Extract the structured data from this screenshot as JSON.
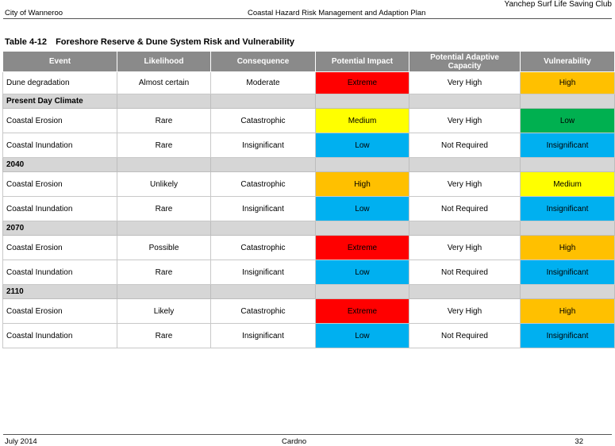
{
  "header": {
    "left": "City of Wanneroo",
    "center": "Coastal Hazard Risk Management and Adaption Plan",
    "right": "Yanchep Surf Life Saving Club"
  },
  "caption": {
    "number": "Table 4-12",
    "title": "Foreshore Reserve & Dune System Risk and Vulnerability"
  },
  "columns": [
    "Event",
    "Likelihood",
    "Consequence",
    "Potential Impact",
    "Potential Adaptive Capacity",
    "Vulnerability"
  ],
  "colors": {
    "Extreme": "#ff0000",
    "High": "#ffc000",
    "Medium": "#ffff00",
    "Low_impact": "#00b0f0",
    "Low_vulnerability": "#00b050",
    "Insignificant": "#00b0f0"
  },
  "rows": [
    {
      "type": "row",
      "event": "Dune degradation",
      "likelihood": "Almost certain",
      "consequence": "Moderate",
      "impact": "Extreme",
      "capacity": "Very High",
      "vulnerability": "High"
    },
    {
      "type": "section",
      "label": "Present Day Climate"
    },
    {
      "type": "row",
      "event": "Coastal Erosion",
      "likelihood": "Rare",
      "consequence": "Catastrophic",
      "impact": "Medium",
      "capacity": "Very High",
      "vulnerability": "Low"
    },
    {
      "type": "row",
      "event": "Coastal Inundation",
      "likelihood": "Rare",
      "consequence": "Insignificant",
      "impact": "Low",
      "capacity": "Not Required",
      "vulnerability": "Insignificant"
    },
    {
      "type": "section",
      "label": "2040"
    },
    {
      "type": "row",
      "event": "Coastal Erosion",
      "likelihood": "Unlikely",
      "consequence": "Catastrophic",
      "impact": "High",
      "capacity": "Very  High",
      "vulnerability": "Medium"
    },
    {
      "type": "row",
      "event": "Coastal Inundation",
      "likelihood": "Rare",
      "consequence": "Insignificant",
      "impact": "Low",
      "capacity": "Not Required",
      "vulnerability": "Insignificant"
    },
    {
      "type": "section",
      "label": "2070"
    },
    {
      "type": "row",
      "event": "Coastal Erosion",
      "likelihood": "Possible",
      "consequence": "Catastrophic",
      "impact": "Extreme",
      "capacity": "Very  High",
      "vulnerability": "High"
    },
    {
      "type": "row",
      "event": "Coastal Inundation",
      "likelihood": "Rare",
      "consequence": "Insignificant",
      "impact": "Low",
      "capacity": "Not Required",
      "vulnerability": "Insignificant"
    },
    {
      "type": "section",
      "label": "2110"
    },
    {
      "type": "row",
      "event": "Coastal Erosion",
      "likelihood": "Likely",
      "consequence": "Catastrophic",
      "impact": "Extreme",
      "capacity": "Very  High",
      "vulnerability": "High"
    },
    {
      "type": "row",
      "event": "Coastal Inundation",
      "likelihood": "Rare",
      "consequence": "Insignificant",
      "impact": "Low",
      "capacity": "Not Required",
      "vulnerability": "Insignificant"
    }
  ],
  "footer": {
    "left": "July 2014",
    "center": "Cardno",
    "right": "32"
  }
}
